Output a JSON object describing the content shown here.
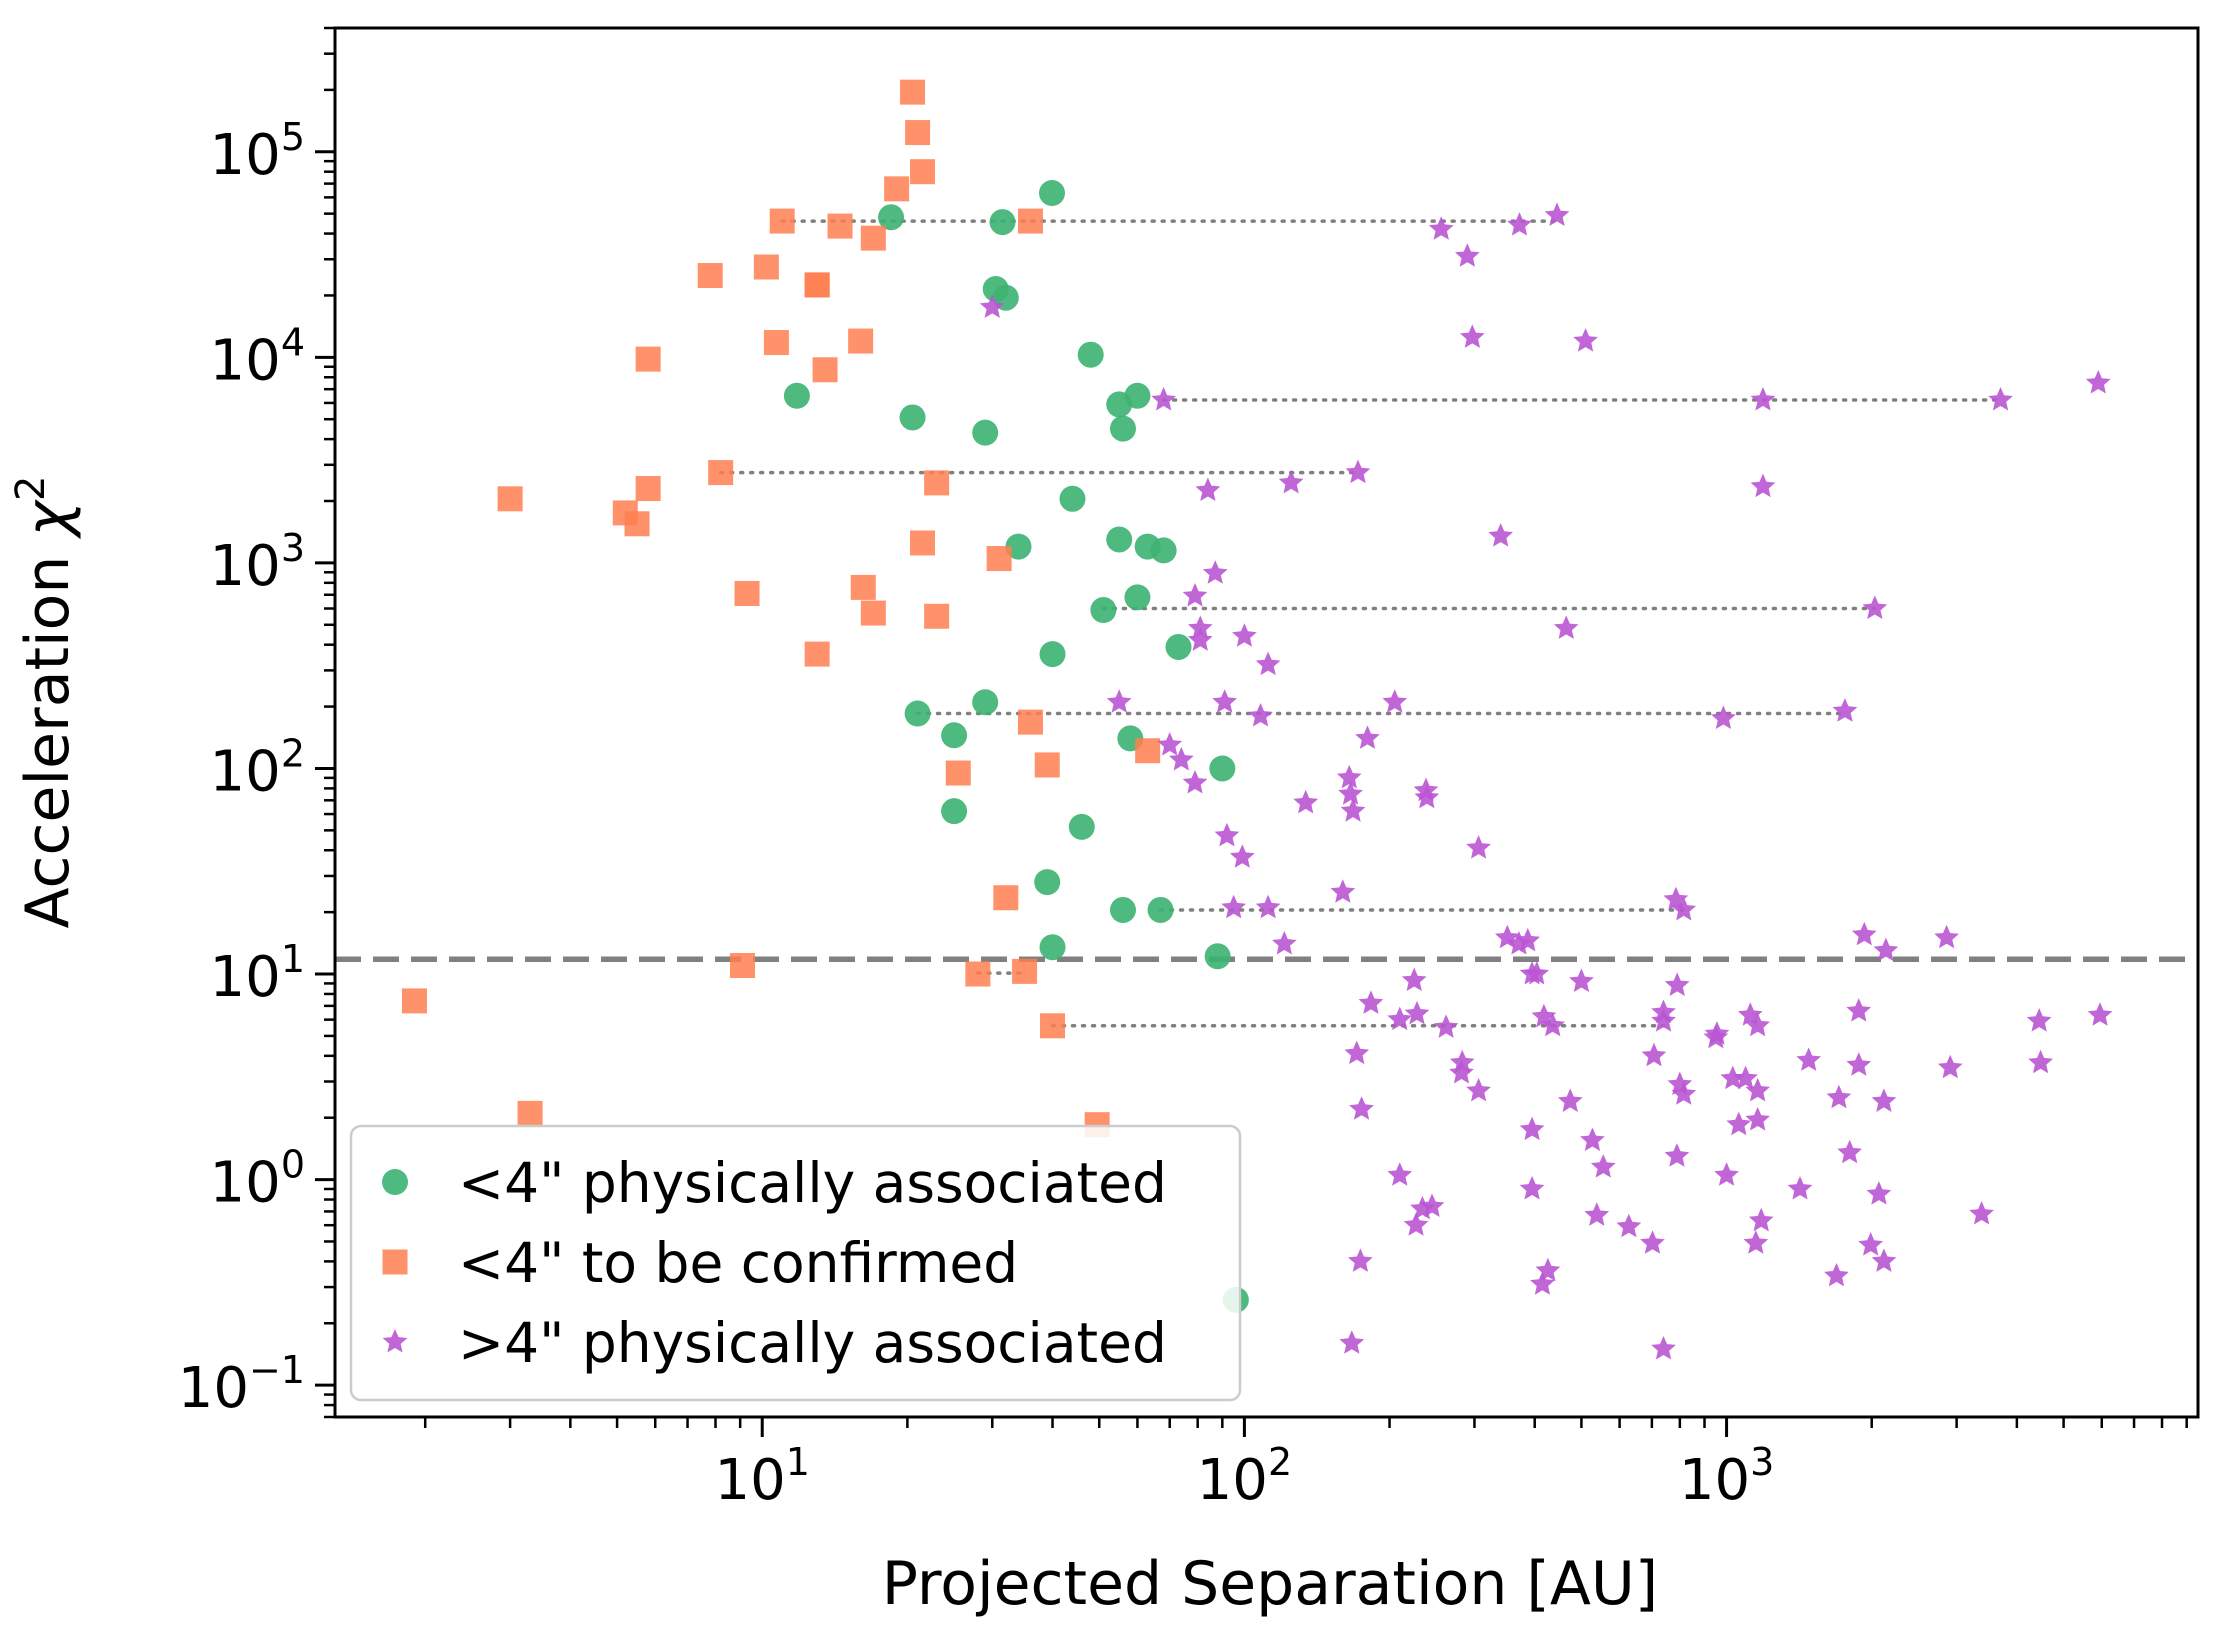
{
  "chart_data": {
    "type": "scatter",
    "xscale": "log",
    "yscale": "log",
    "xlim": [
      1.3,
      9500
    ],
    "ylim": [
      0.07,
      400000
    ],
    "xlabel": "Projected Separation [AU]",
    "ylabel": "Acceleration χ²",
    "ylabel_main": "Acceleration ",
    "ylabel_symbol": "χ",
    "ylabel_sup": "2",
    "x_ticks": [
      {
        "value": 10,
        "base": "10",
        "exp": "1"
      },
      {
        "value": 100,
        "base": "10",
        "exp": "2"
      },
      {
        "value": 1000,
        "base": "10",
        "exp": "3"
      }
    ],
    "y_ticks": [
      {
        "value": 0.1,
        "base": "10",
        "exp": "−1"
      },
      {
        "value": 1,
        "base": "10",
        "exp": "0"
      },
      {
        "value": 10,
        "base": "10",
        "exp": "1"
      },
      {
        "value": 100,
        "base": "10",
        "exp": "2"
      },
      {
        "value": 1000,
        "base": "10",
        "exp": "3"
      },
      {
        "value": 10000,
        "base": "10",
        "exp": "4"
      },
      {
        "value": 100000,
        "base": "10",
        "exp": "5"
      }
    ],
    "threshold_line": {
      "y": 11.8,
      "style": "dashed",
      "color": "#808080"
    },
    "legend_position": "lower-left",
    "series": [
      {
        "name": "<4\" physically associated",
        "marker": "circle",
        "color": "#3CB371",
        "points": [
          [
            39.9,
            63000
          ],
          [
            18.5,
            48000
          ],
          [
            31.5,
            45500
          ],
          [
            30.5,
            21500
          ],
          [
            32.0,
            19500
          ],
          [
            48.0,
            10300
          ],
          [
            60.0,
            6500
          ],
          [
            11.8,
            6500
          ],
          [
            55.0,
            5900
          ],
          [
            20.5,
            5100
          ],
          [
            56.0,
            4500
          ],
          [
            29.0,
            4300
          ],
          [
            44.0,
            2050
          ],
          [
            34.0,
            1200
          ],
          [
            55.0,
            1300
          ],
          [
            63.0,
            1200
          ],
          [
            68.0,
            1150
          ],
          [
            60.0,
            680
          ],
          [
            51.0,
            590
          ],
          [
            40.0,
            360
          ],
          [
            73.0,
            390
          ],
          [
            29.0,
            210
          ],
          [
            21.0,
            185
          ],
          [
            25.0,
            145
          ],
          [
            58.0,
            140
          ],
          [
            90.0,
            100
          ],
          [
            25.0,
            62
          ],
          [
            46.0,
            52
          ],
          [
            39.0,
            28
          ],
          [
            56.0,
            20.5
          ],
          [
            67.0,
            20.5
          ],
          [
            40.0,
            13.5
          ],
          [
            88.0,
            12.2
          ],
          [
            96.0,
            0.26
          ]
        ]
      },
      {
        "name": "<4\" to be confirmed",
        "marker": "square",
        "color": "#FF7F50",
        "points": [
          [
            20.5,
            195000
          ],
          [
            21.0,
            124000
          ],
          [
            21.5,
            80000
          ],
          [
            19.0,
            66000
          ],
          [
            11.0,
            46000
          ],
          [
            14.5,
            43500
          ],
          [
            17.0,
            38000
          ],
          [
            36.0,
            46000
          ],
          [
            7.8,
            25000
          ],
          [
            10.2,
            27500
          ],
          [
            13.0,
            22500
          ],
          [
            13.0,
            22500
          ],
          [
            5.8,
            9800
          ],
          [
            10.7,
            11800
          ],
          [
            13.5,
            8700
          ],
          [
            16.0,
            12000
          ],
          [
            8.2,
            2750
          ],
          [
            5.8,
            2300
          ],
          [
            3.0,
            2050
          ],
          [
            5.2,
            1750
          ],
          [
            5.5,
            1550
          ],
          [
            23.0,
            2450
          ],
          [
            21.5,
            1250
          ],
          [
            31.0,
            1050
          ],
          [
            9.3,
            710
          ],
          [
            16.2,
            760
          ],
          [
            17.0,
            570
          ],
          [
            23.0,
            550
          ],
          [
            13.0,
            360
          ],
          [
            36.0,
            168
          ],
          [
            25.5,
            95
          ],
          [
            39.0,
            104
          ],
          [
            63.0,
            122
          ],
          [
            32.0,
            23.5
          ],
          [
            9.1,
            11.0
          ],
          [
            28.0,
            10.0
          ],
          [
            35.0,
            10.3
          ],
          [
            40.0,
            5.6
          ],
          [
            1.9,
            7.4
          ],
          [
            3.3,
            2.1
          ],
          [
            49.5,
            1.85
          ]
        ]
      },
      {
        "name": ">4\" physically associated",
        "marker": "star",
        "color": "#BA55D3",
        "points": [
          [
            445,
            49000
          ],
          [
            372,
            44000
          ],
          [
            256,
            42000
          ],
          [
            290,
            31000
          ],
          [
            30.0,
            17500
          ],
          [
            297,
            12500
          ],
          [
            510,
            12000
          ],
          [
            5900,
            7500
          ],
          [
            68,
            6200
          ],
          [
            1190,
            6200
          ],
          [
            3700,
            6200
          ],
          [
            172,
            2750
          ],
          [
            125,
            2450
          ],
          [
            84,
            2250
          ],
          [
            1190,
            2350
          ],
          [
            340,
            1350
          ],
          [
            87,
            890
          ],
          [
            79,
            690
          ],
          [
            81,
            480
          ],
          [
            81,
            420
          ],
          [
            100,
            440
          ],
          [
            112,
            320
          ],
          [
            465,
            480
          ],
          [
            2030,
            600
          ],
          [
            55,
            210
          ],
          [
            91,
            210
          ],
          [
            108,
            180
          ],
          [
            205,
            210
          ],
          [
            180,
            140
          ],
          [
            1760,
            190
          ],
          [
            985,
            175
          ],
          [
            70,
            130
          ],
          [
            74,
            110
          ],
          [
            79,
            85
          ],
          [
            165,
            90
          ],
          [
            166,
            75
          ],
          [
            168,
            62
          ],
          [
            238,
            78
          ],
          [
            239,
            72
          ],
          [
            134,
            68
          ],
          [
            92,
            47
          ],
          [
            99,
            37
          ],
          [
            306,
            41
          ],
          [
            95,
            21
          ],
          [
            112,
            21
          ],
          [
            160,
            25
          ],
          [
            121,
            14
          ],
          [
            785,
            23
          ],
          [
            815,
            20.5
          ],
          [
            351,
            15
          ],
          [
            371,
            14
          ],
          [
            387,
            14.5
          ],
          [
            1930,
            15.5
          ],
          [
            2140,
            13
          ],
          [
            2860,
            15
          ],
          [
            404,
            10
          ],
          [
            500,
            9.2
          ],
          [
            225,
            9.3
          ],
          [
            183,
            7.2
          ],
          [
            395,
            10
          ],
          [
            790,
            8.8
          ],
          [
            1880,
            6.6
          ],
          [
            1120,
            6.3
          ],
          [
            4450,
            5.9
          ],
          [
            5950,
            6.3
          ],
          [
            210,
            6
          ],
          [
            228,
            6.4
          ],
          [
            262,
            5.5
          ],
          [
            418,
            6.2
          ],
          [
            436,
            5.6
          ],
          [
            740,
            5.9
          ],
          [
            1160,
            5.6
          ],
          [
            740,
            6.5
          ],
          [
            955,
            5.1
          ],
          [
            950,
            4.9
          ],
          [
            171,
            4.1
          ],
          [
            283,
            3.7
          ],
          [
            282,
            3.3
          ],
          [
            306,
            2.7
          ],
          [
            707,
            4
          ],
          [
            1030,
            3.1
          ],
          [
            1095,
            3.1
          ],
          [
            1160,
            2.7
          ],
          [
            1480,
            3.8
          ],
          [
            1710,
            2.5
          ],
          [
            1880,
            3.6
          ],
          [
            2120,
            2.4
          ],
          [
            2910,
            3.5
          ],
          [
            4480,
            3.7
          ],
          [
            800,
            2.9
          ],
          [
            815,
            2.6
          ],
          [
            1060,
            1.85
          ],
          [
            1160,
            1.95
          ],
          [
            175,
            2.2
          ],
          [
            395,
            1.75
          ],
          [
            474,
            2.4
          ],
          [
            527,
            1.55
          ],
          [
            555,
            1.15
          ],
          [
            1800,
            1.35
          ],
          [
            789,
            1.3
          ],
          [
            210,
            1.05
          ],
          [
            1000,
            1.05
          ],
          [
            1420,
            0.9
          ],
          [
            2070,
            0.85
          ],
          [
            395,
            0.9
          ],
          [
            234,
            0.72
          ],
          [
            245,
            0.74
          ],
          [
            227,
            0.6
          ],
          [
            538,
            0.67
          ],
          [
            627,
            0.59
          ],
          [
            702,
            0.49
          ],
          [
            1150,
            0.49
          ],
          [
            1180,
            0.63
          ],
          [
            1990,
            0.48
          ],
          [
            3380,
            0.68
          ],
          [
            174,
            0.4
          ],
          [
            415,
            0.31
          ],
          [
            426,
            0.36
          ],
          [
            1690,
            0.34
          ],
          [
            2120,
            0.4
          ],
          [
            167,
            0.16
          ],
          [
            740,
            0.15
          ]
        ]
      }
    ],
    "connectors": [
      {
        "x1": 11.0,
        "x2": 445,
        "y": 46000
      },
      {
        "x1": 68,
        "x2": 3700,
        "y": 6200
      },
      {
        "x1": 8.2,
        "x2": 172,
        "y": 2750
      },
      {
        "x1": 51,
        "x2": 2030,
        "y": 600
      },
      {
        "x1": 21,
        "x2": 1760,
        "y": 185
      },
      {
        "x1": 67,
        "x2": 815,
        "y": 20.5
      },
      {
        "x1": 28,
        "x2": 35,
        "y": 10.1
      },
      {
        "x1": 40,
        "x2": 740,
        "y": 5.6
      }
    ]
  }
}
